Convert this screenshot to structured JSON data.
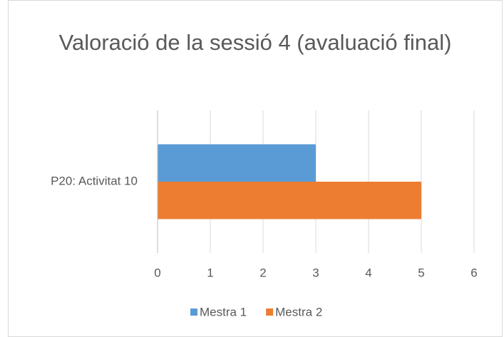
{
  "chart_data": {
    "type": "bar",
    "orientation": "horizontal",
    "title": "Valoració de la sessió 4 (avaluació final)",
    "categories": [
      "P20: Activitat 10"
    ],
    "series": [
      {
        "name": "Mestra 1",
        "color": "#5b9bd5",
        "values": [
          3
        ]
      },
      {
        "name": "Mestra 2",
        "color": "#ed7d31",
        "values": [
          5
        ]
      }
    ],
    "xlim": [
      0,
      6
    ],
    "xticks": [
      0,
      1,
      2,
      3,
      4,
      5,
      6
    ],
    "grid": true,
    "legend": "bottom"
  }
}
